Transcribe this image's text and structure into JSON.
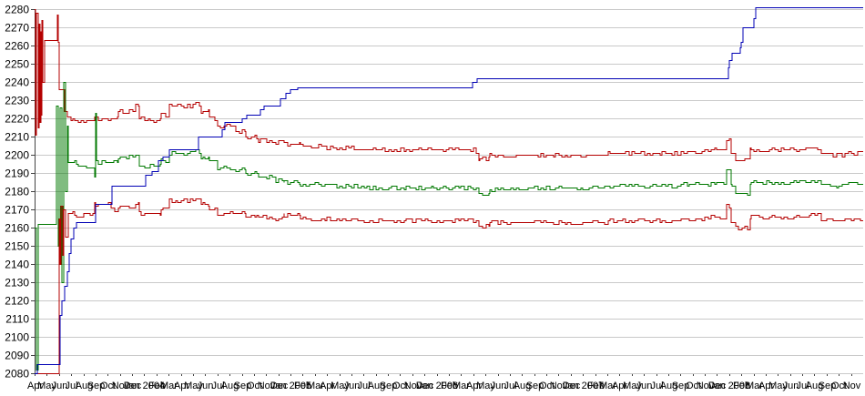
{
  "chart_data": {
    "type": "line",
    "title": "",
    "grid": true,
    "legend": "none",
    "y_axis": {
      "min": 2080,
      "max": 2280,
      "tick_step": 10,
      "tick_labels": [
        "2280",
        "2270",
        "2260",
        "2250",
        "2240",
        "2230",
        "2220",
        "2210",
        "2200",
        "2190",
        "2180",
        "2170",
        "2160",
        "2150",
        "2140",
        "2130",
        "2120",
        "2110",
        "2100",
        "2090",
        "2080"
      ]
    },
    "x_axis": {
      "months_total": 68,
      "start_label": "Apr",
      "tick_labels": [
        "Apr",
        "May",
        "Jun",
        "Jul",
        "Aug",
        "Sep",
        "Oct",
        "Nov",
        "Dec",
        "Jan 2004",
        "Feb",
        "Mar",
        "Apr",
        "May",
        "Jun",
        "Jul",
        "Aug",
        "Sep",
        "Oct",
        "Nov",
        "Dec",
        "Jan 2005",
        "Feb",
        "Mar",
        "Apr",
        "May",
        "Jun",
        "Jul",
        "Aug",
        "Sep",
        "Oct",
        "Nov",
        "Dec",
        "Jan 2006",
        "Feb",
        "Mar",
        "Apr",
        "May",
        "Jun",
        "Jul",
        "Aug",
        "Sep",
        "Oct",
        "Nov",
        "Dec",
        "Jan 2007",
        "Feb",
        "Mar",
        "Apr",
        "May",
        "Jun",
        "Jul",
        "Aug",
        "Sep",
        "Oct",
        "Nov",
        "Dec",
        "Jan 2008",
        "Feb",
        "Mar",
        "Apr",
        "May",
        "Jun",
        "Jul",
        "Aug",
        "Sep",
        "Oct",
        "Nov"
      ]
    },
    "colors": {
      "band_red": "#b40000",
      "center_green": "#007800",
      "step_blue": "#0000b4",
      "grid": "#c9c9c9",
      "axis": "#444444",
      "text": "#000000"
    },
    "noise_texture": {
      "amplitude": 1.2,
      "pulse_months": 0.25,
      "start_month": 3.1,
      "sample_step": 0.07
    },
    "series": [
      {
        "name": "upper-band-red",
        "color_key": "band_red",
        "noisy": true,
        "seed": 11,
        "points": [
          [
            0,
            2280
          ],
          [
            0.06,
            2211
          ],
          [
            0.14,
            2278
          ],
          [
            0.22,
            2215
          ],
          [
            0.3,
            2272
          ],
          [
            0.38,
            2218
          ],
          [
            0.46,
            2268
          ],
          [
            0.54,
            2222
          ],
          [
            0.62,
            2274
          ],
          [
            0.7,
            2240
          ],
          [
            0.78,
            2263
          ],
          [
            1.78,
            2263
          ],
          [
            1.84,
            2277
          ],
          [
            1.94,
            2262
          ],
          [
            2.02,
            2236
          ],
          [
            2.32,
            2236
          ],
          [
            2.45,
            2224
          ],
          [
            2.62,
            2221
          ],
          [
            3,
            2219
          ],
          [
            4.75,
            2219
          ],
          [
            4.9,
            2221
          ],
          [
            5.2,
            2220
          ],
          [
            6.5,
            2221
          ],
          [
            6.8,
            2224
          ],
          [
            8.3,
            2227
          ],
          [
            8.55,
            2220
          ],
          [
            9.5,
            2219
          ],
          [
            10.3,
            2222
          ],
          [
            11,
            2227
          ],
          [
            13.2,
            2228
          ],
          [
            13.6,
            2224
          ],
          [
            14.3,
            2220
          ],
          [
            15,
            2216
          ],
          [
            16.5,
            2213
          ],
          [
            17.3,
            2210
          ],
          [
            18.4,
            2208
          ],
          [
            19.8,
            2207
          ],
          [
            20.4,
            2206
          ],
          [
            21.8,
            2205
          ],
          [
            24,
            2204
          ],
          [
            26.5,
            2203
          ],
          [
            33,
            2203
          ],
          [
            36.2,
            2202
          ],
          [
            36.45,
            2198
          ],
          [
            37.05,
            2198
          ],
          [
            37.35,
            2200
          ],
          [
            39,
            2200
          ],
          [
            44,
            2200
          ],
          [
            47,
            2201
          ],
          [
            50,
            2201
          ],
          [
            53,
            2202
          ],
          [
            55.5,
            2203
          ],
          [
            56.6,
            2203
          ],
          [
            56.72,
            2209
          ],
          [
            57.05,
            2209
          ],
          [
            57.15,
            2201
          ],
          [
            57.5,
            2197
          ],
          [
            58.5,
            2197
          ],
          [
            58.72,
            2203
          ],
          [
            62,
            2203
          ],
          [
            63.5,
            2204
          ],
          [
            64.5,
            2201
          ],
          [
            65.5,
            2200
          ],
          [
            66.5,
            2201
          ],
          [
            68,
            2201
          ]
        ]
      },
      {
        "name": "center-rating-green",
        "color_key": "center_green",
        "noisy": true,
        "seed": 23,
        "points": [
          [
            0,
            2160
          ],
          [
            0.1,
            2160
          ],
          [
            0.13,
            2082
          ],
          [
            0.22,
            2082
          ],
          [
            0.25,
            2162
          ],
          [
            1.7,
            2162
          ],
          [
            1.8,
            2227
          ],
          [
            1.9,
            2150
          ],
          [
            2.05,
            2226
          ],
          [
            2.2,
            2130
          ],
          [
            2.35,
            2240
          ],
          [
            2.5,
            2180
          ],
          [
            2.6,
            2216
          ],
          [
            2.75,
            2196
          ],
          [
            3.4,
            2194
          ],
          [
            4.75,
            2193
          ],
          [
            4.85,
            2188
          ],
          [
            4.92,
            2222
          ],
          [
            5.05,
            2196
          ],
          [
            6.5,
            2197
          ],
          [
            6.8,
            2199
          ],
          [
            8.3,
            2200
          ],
          [
            8.55,
            2194
          ],
          [
            9.5,
            2194
          ],
          [
            10.3,
            2197
          ],
          [
            11,
            2201
          ],
          [
            13.2,
            2202
          ],
          [
            13.6,
            2199
          ],
          [
            14.3,
            2197
          ],
          [
            15,
            2193
          ],
          [
            16.5,
            2192
          ],
          [
            17.3,
            2190
          ],
          [
            18.4,
            2188
          ],
          [
            19.8,
            2186
          ],
          [
            20.4,
            2185
          ],
          [
            21.8,
            2184
          ],
          [
            24,
            2183
          ],
          [
            26.5,
            2182
          ],
          [
            33,
            2182
          ],
          [
            36.2,
            2182
          ],
          [
            36.45,
            2179
          ],
          [
            37.05,
            2179
          ],
          [
            37.35,
            2181
          ],
          [
            39,
            2181
          ],
          [
            40.5,
            2182
          ],
          [
            44,
            2182
          ],
          [
            47,
            2183
          ],
          [
            50,
            2183
          ],
          [
            53,
            2184
          ],
          [
            55.5,
            2185
          ],
          [
            56.6,
            2185
          ],
          [
            56.72,
            2191
          ],
          [
            57.05,
            2191
          ],
          [
            57.15,
            2183
          ],
          [
            57.5,
            2179
          ],
          [
            58.5,
            2179
          ],
          [
            58.72,
            2185
          ],
          [
            62,
            2185
          ],
          [
            63.5,
            2186
          ],
          [
            64.5,
            2184
          ],
          [
            65.5,
            2183
          ],
          [
            66.5,
            2184
          ],
          [
            68,
            2184
          ]
        ]
      },
      {
        "name": "lower-band-red",
        "color_key": "band_red",
        "noisy": true,
        "seed": 37,
        "points": [
          [
            0,
            2080
          ],
          [
            1.9,
            2080
          ],
          [
            1.98,
            2165
          ],
          [
            2.05,
            2140
          ],
          [
            2.15,
            2172
          ],
          [
            2.25,
            2145
          ],
          [
            2.35,
            2170
          ],
          [
            2.5,
            2155
          ],
          [
            2.7,
            2168
          ],
          [
            3.4,
            2167
          ],
          [
            4.75,
            2167
          ],
          [
            4.9,
            2173
          ],
          [
            6.3,
            2172
          ],
          [
            6.55,
            2170
          ],
          [
            6.8,
            2172
          ],
          [
            8.3,
            2173
          ],
          [
            8.55,
            2168
          ],
          [
            9.5,
            2168
          ],
          [
            10.3,
            2171
          ],
          [
            11,
            2175
          ],
          [
            13.2,
            2176
          ],
          [
            13.6,
            2173
          ],
          [
            14.3,
            2171
          ],
          [
            15,
            2168
          ],
          [
            16.5,
            2169
          ],
          [
            17.3,
            2167
          ],
          [
            18.4,
            2166
          ],
          [
            19.8,
            2165
          ],
          [
            20.4,
            2167
          ],
          [
            21.8,
            2165
          ],
          [
            24,
            2165
          ],
          [
            26.5,
            2164
          ],
          [
            33,
            2164
          ],
          [
            36.2,
            2164
          ],
          [
            36.45,
            2161
          ],
          [
            37.05,
            2161
          ],
          [
            37.35,
            2163
          ],
          [
            39,
            2163
          ],
          [
            44,
            2163
          ],
          [
            47,
            2164
          ],
          [
            50,
            2164
          ],
          [
            53,
            2165
          ],
          [
            55.5,
            2166
          ],
          [
            56.6,
            2166
          ],
          [
            56.72,
            2172
          ],
          [
            57.05,
            2172
          ],
          [
            57.15,
            2164
          ],
          [
            57.5,
            2160
          ],
          [
            58.5,
            2160
          ],
          [
            58.72,
            2166
          ],
          [
            62,
            2166
          ],
          [
            63.5,
            2167
          ],
          [
            64.5,
            2164
          ],
          [
            65.5,
            2164
          ],
          [
            66.5,
            2165
          ],
          [
            68,
            2165
          ]
        ]
      },
      {
        "name": "cumulative-step-blue",
        "color_key": "step_blue",
        "noisy": false,
        "seed": 5,
        "points": [
          [
            0,
            2080
          ],
          [
            0.15,
            2085
          ],
          [
            2,
            2085
          ],
          [
            2.05,
            2112
          ],
          [
            2.2,
            2120
          ],
          [
            2.4,
            2128
          ],
          [
            2.6,
            2136
          ],
          [
            2.8,
            2146
          ],
          [
            3,
            2154
          ],
          [
            3.2,
            2160
          ],
          [
            3.4,
            2163
          ],
          [
            4.9,
            2163
          ],
          [
            4.95,
            2173
          ],
          [
            6.3,
            2173
          ],
          [
            6.35,
            2183
          ],
          [
            9,
            2183
          ],
          [
            9.1,
            2189
          ],
          [
            9.6,
            2191
          ],
          [
            10.1,
            2197
          ],
          [
            10.5,
            2199
          ],
          [
            11,
            2203
          ],
          [
            13.3,
            2203
          ],
          [
            13.4,
            2210
          ],
          [
            15.2,
            2210
          ],
          [
            15.4,
            2214
          ],
          [
            15.6,
            2218
          ],
          [
            16.85,
            2218
          ],
          [
            16.95,
            2220
          ],
          [
            17.4,
            2222
          ],
          [
            18.35,
            2222
          ],
          [
            18.55,
            2225
          ],
          [
            18.8,
            2227
          ],
          [
            20,
            2227
          ],
          [
            20.15,
            2231
          ],
          [
            20.6,
            2234
          ],
          [
            21,
            2236
          ],
          [
            21.5,
            2237
          ],
          [
            35.6,
            2237
          ],
          [
            35.85,
            2240
          ],
          [
            36.3,
            2242
          ],
          [
            56.8,
            2242
          ],
          [
            56.9,
            2248
          ],
          [
            57,
            2252
          ],
          [
            57.2,
            2256
          ],
          [
            57.7,
            2256
          ],
          [
            57.85,
            2259
          ],
          [
            57.95,
            2262
          ],
          [
            58.05,
            2266
          ],
          [
            58.15,
            2270
          ],
          [
            58.9,
            2270
          ],
          [
            59,
            2275
          ],
          [
            59.15,
            2281
          ],
          [
            68,
            2281
          ]
        ]
      }
    ]
  }
}
